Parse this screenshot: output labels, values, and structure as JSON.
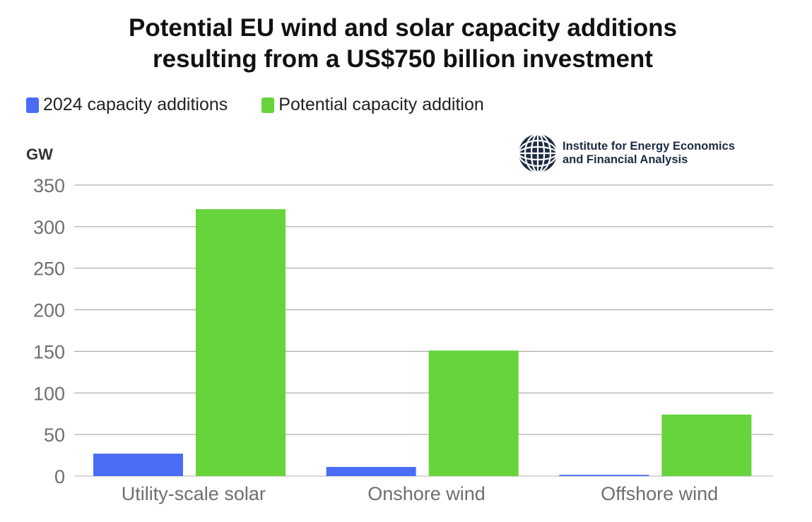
{
  "chart_data": {
    "type": "bar",
    "title_lines": [
      "Potential EU wind and solar capacity additions",
      "resulting from a US$750 billion investment"
    ],
    "ylabel": "GW",
    "ylim": [
      0,
      350
    ],
    "yticks": [
      0,
      50,
      100,
      150,
      200,
      250,
      300,
      350
    ],
    "grid": true,
    "legend_position": "top-left",
    "categories": [
      "Utility-scale solar",
      "Onshore wind",
      "Offshore wind"
    ],
    "series": [
      {
        "name": "2024 capacity additions",
        "color": "#4a6cf7",
        "values": [
          27,
          11,
          1.5
        ]
      },
      {
        "name": "Potential capacity addition",
        "color": "#66d43a",
        "values": [
          321,
          151,
          74
        ]
      }
    ]
  },
  "logo": {
    "icon": "globe-grid-icon",
    "line1": "Institute for Energy Economics",
    "line2": "and Financial Analysis"
  }
}
